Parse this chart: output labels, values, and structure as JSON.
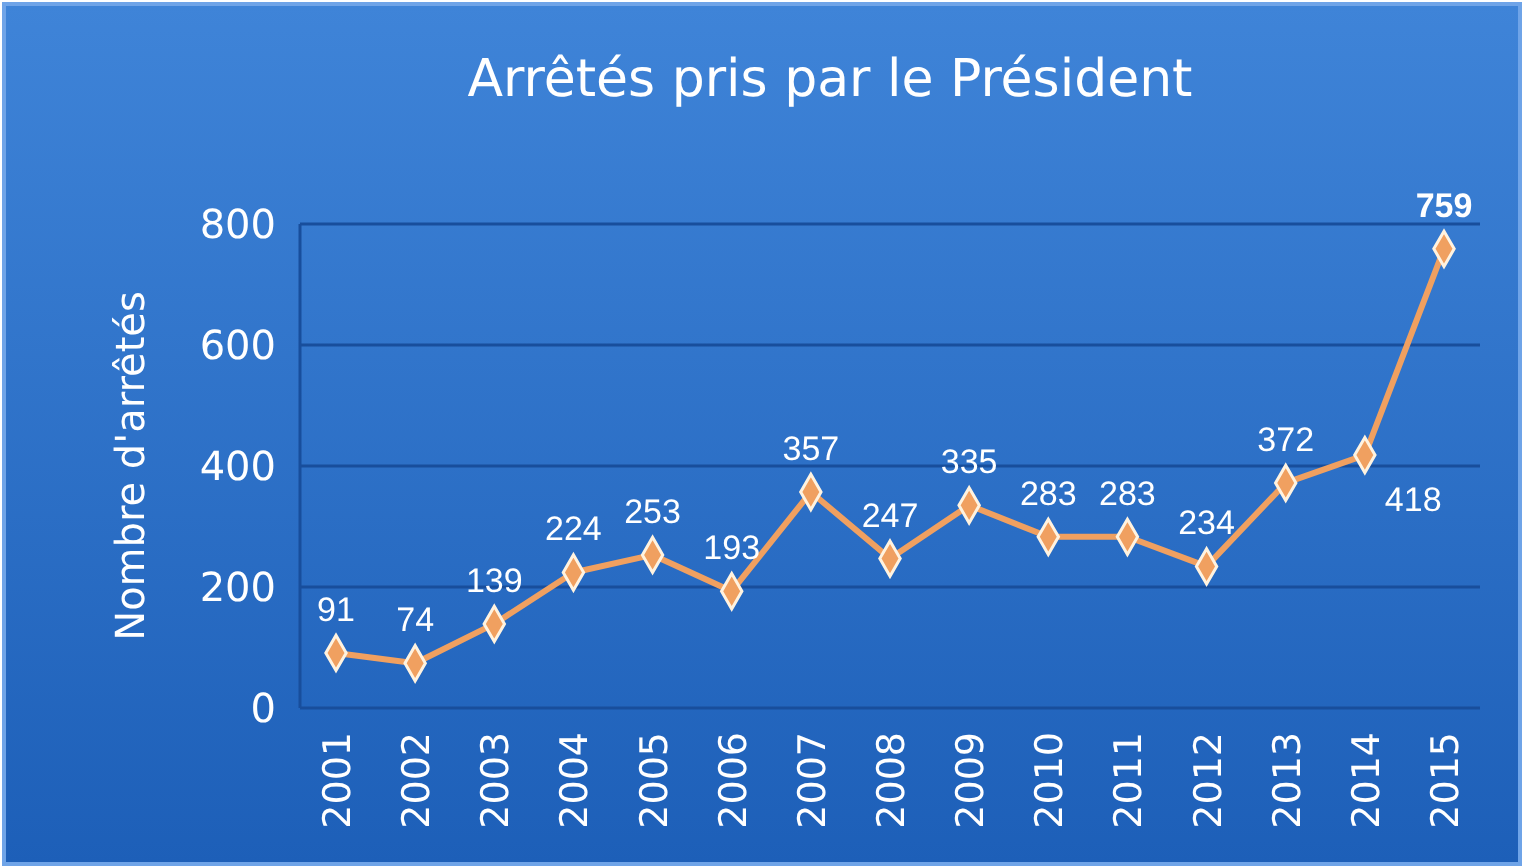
{
  "chart_data": {
    "type": "line",
    "title": "Arrêtés pris par le Président",
    "ylabel": "Nombre d'arrêtés",
    "categories": [
      "2001",
      "2002",
      "2003",
      "2004",
      "2005",
      "2006",
      "2007",
      "2008",
      "2009",
      "2010",
      "2011",
      "2012",
      "2013",
      "2014",
      "2015"
    ],
    "series": [
      {
        "color": "#f0a060",
        "values": [
          91,
          74,
          139,
          224,
          253,
          193,
          357,
          247,
          335,
          283,
          283,
          234,
          372,
          418,
          759
        ]
      }
    ],
    "ylim": [
      0,
      800
    ],
    "yticks": [
      0,
      200,
      400,
      600,
      800
    ],
    "grid": "y",
    "marker": "diamond",
    "data_labels": true
  }
}
